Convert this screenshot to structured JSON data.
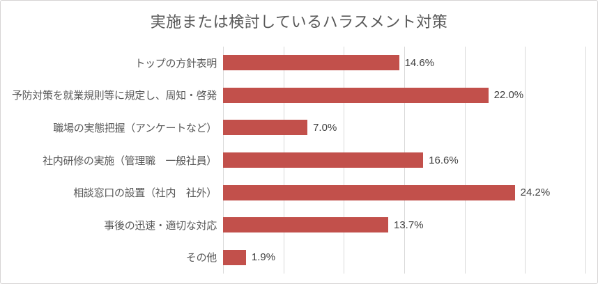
{
  "chart_title": "実施または検討しているハラスメント対策",
  "colors": {
    "bar": "#C2504B",
    "gridline": "#D9D9D9",
    "title_text": "#595959",
    "category_text": "#595959",
    "value_text": "#3F3F3F",
    "frame_border": "#D6D4D4",
    "background": "#FFFFFF"
  },
  "chart_data": {
    "type": "bar",
    "orientation": "horizontal",
    "title": "実施または検討しているハラスメント対策",
    "categories": [
      "トップの方針表明",
      "予防対策を就業規則等に規定し、周知・啓発",
      "職場の実態把握（アンケートなど）",
      "社内研修の実施（管理職　一般社員）",
      "相談窓口の設置（社内　社外）",
      "事後の迅速・適切な対応",
      "その他"
    ],
    "values": [
      14.6,
      22.0,
      7.0,
      16.6,
      24.2,
      13.7,
      1.9
    ],
    "value_labels": [
      "14.6%",
      "22.0%",
      "7.0%",
      "16.6%",
      "24.2%",
      "13.7%",
      "1.9%"
    ],
    "xlabel": "",
    "ylabel": "",
    "xlim": [
      0,
      30
    ],
    "gridline_interval_pct": 5,
    "grid": true,
    "legend": false,
    "data_labels": true
  }
}
